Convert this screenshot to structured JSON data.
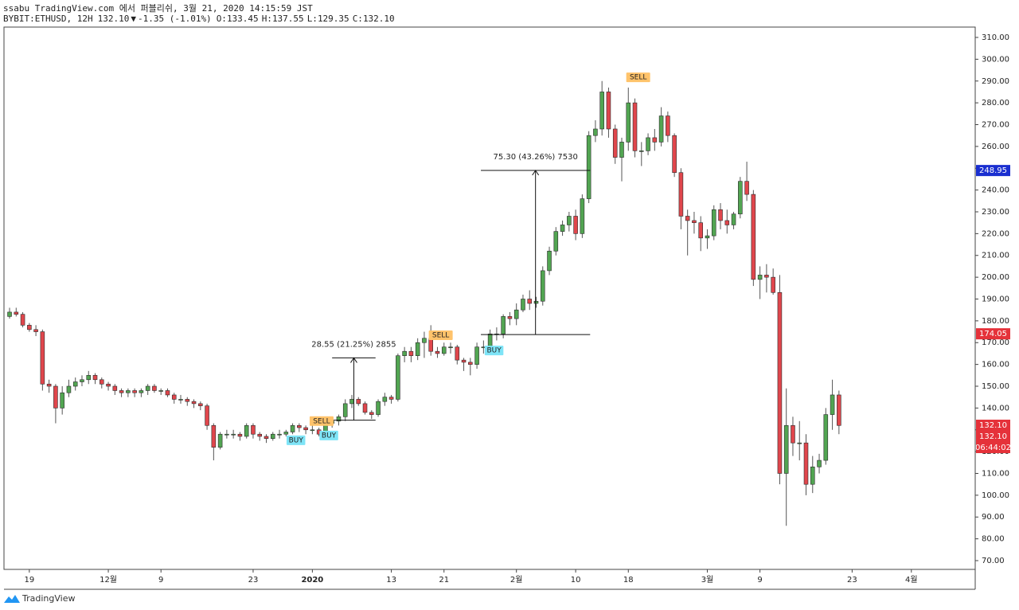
{
  "header": {
    "publisher": "ssabu TradingView.com 에서 퍼블리쉬, 3월 21, 2020 14:15:59 JST",
    "symbol": "BYBIT:ETHUSD, 12H",
    "last": "132.10",
    "direction": "▼",
    "change": "-1.35 (-1.01%)",
    "ohlc": [
      {
        "label": "O:",
        "value": "133.45"
      },
      {
        "label": "H:",
        "value": "137.55"
      },
      {
        "label": "L:",
        "value": "129.35"
      },
      {
        "label": "C:",
        "value": "132.10"
      }
    ]
  },
  "logo": "TradingView",
  "chart_data": {
    "type": "candlestick",
    "up_color": "#52a552",
    "down_color": "#e0464c",
    "wick_color": "#555555",
    "xlim": [
      -0.85,
      146.7
    ],
    "ylim": [
      65.98,
      314.75
    ],
    "grid": false,
    "xticks": [
      {
        "value": 3,
        "label": "19"
      },
      {
        "value": 15,
        "label": "12월"
      },
      {
        "value": 23,
        "label": "9"
      },
      {
        "value": 37,
        "label": "23"
      },
      {
        "value": 46,
        "label": "2020"
      },
      {
        "value": 58,
        "label": "13"
      },
      {
        "value": 66,
        "label": "21"
      },
      {
        "value": 77,
        "label": "2월"
      },
      {
        "value": 86,
        "label": "10"
      },
      {
        "value": 94,
        "label": "18"
      },
      {
        "value": 106,
        "label": "3월"
      },
      {
        "value": 114,
        "label": "9"
      },
      {
        "value": 128,
        "label": "23"
      },
      {
        "value": 137,
        "label": "4월"
      }
    ],
    "yticks": [
      {
        "value": 70,
        "label": "70.00"
      },
      {
        "value": 80,
        "label": "80.00"
      },
      {
        "value": 90,
        "label": "90.00"
      },
      {
        "value": 100,
        "label": "100.00"
      },
      {
        "value": 110,
        "label": "110.00"
      },
      {
        "value": 120,
        "label": "120.00"
      },
      {
        "value": 130,
        "label": "130.00"
      },
      {
        "value": 140,
        "label": "140.00"
      },
      {
        "value": 150,
        "label": "150.00"
      },
      {
        "value": 160,
        "label": "160.00"
      },
      {
        "value": 170,
        "label": "170.00"
      },
      {
        "value": 180,
        "label": "180.00"
      },
      {
        "value": 190,
        "label": "190.00"
      },
      {
        "value": 200,
        "label": "200.00"
      },
      {
        "value": 210,
        "label": "210.00"
      },
      {
        "value": 220,
        "label": "220.00"
      },
      {
        "value": 230,
        "label": "230.00"
      },
      {
        "value": 240,
        "label": "240.00"
      },
      {
        "value": 250,
        "label": "250.00"
      },
      {
        "value": 260,
        "label": "260.00"
      },
      {
        "value": 270,
        "label": "270.00"
      },
      {
        "value": 280,
        "label": "280.00"
      },
      {
        "value": 290,
        "label": "290.00"
      },
      {
        "value": 300,
        "label": "300.00"
      },
      {
        "value": 310,
        "label": "310.00"
      }
    ],
    "open": [
      182,
      184,
      183,
      178,
      176,
      175,
      151,
      150,
      140,
      147,
      150,
      152,
      153,
      155,
      153,
      151,
      150,
      148,
      147,
      148,
      147,
      148,
      150,
      148,
      148,
      146,
      144,
      144,
      143,
      142,
      141,
      132,
      122,
      128,
      128,
      128,
      127,
      132,
      128,
      127,
      126,
      128,
      128,
      129,
      132,
      131,
      130,
      130,
      128,
      133,
      134,
      136,
      142,
      144,
      142,
      138,
      137,
      143,
      145,
      144,
      164,
      166,
      164,
      170,
      172,
      166,
      165,
      168,
      168,
      162,
      161,
      160,
      168,
      168,
      174,
      174,
      182,
      181,
      185,
      190,
      188,
      189,
      203,
      212,
      221,
      224,
      228,
      220,
      236,
      265,
      268,
      285,
      268,
      255,
      262,
      280,
      258,
      258,
      264,
      262,
      274,
      265,
      248,
      228,
      226,
      225,
      218,
      219,
      231,
      226,
      224,
      229,
      244,
      238,
      199,
      201,
      200,
      193,
      110,
      132,
      124,
      124,
      105,
      113,
      116,
      137,
      146
    ],
    "high": [
      186,
      186,
      184,
      179,
      178,
      176,
      153,
      151,
      150,
      153,
      154,
      155,
      157,
      156,
      154,
      152,
      151,
      149,
      149,
      149,
      149,
      151,
      151,
      149,
      149,
      147,
      146,
      145,
      144,
      143,
      142,
      133,
      129,
      130,
      130,
      129,
      133,
      133,
      129,
      128,
      129,
      130,
      130,
      133,
      133,
      132,
      132,
      131,
      134,
      136,
      137,
      144,
      146,
      145,
      143,
      139,
      144,
      147,
      146,
      165,
      168,
      168,
      172,
      175,
      178,
      168,
      170,
      170,
      169,
      163,
      163,
      170,
      171,
      176,
      177,
      183,
      184,
      188,
      192,
      194,
      191,
      205,
      214,
      223,
      226,
      230,
      231,
      238,
      267,
      272,
      290,
      287,
      270,
      264,
      287,
      282,
      262,
      266,
      268,
      278,
      276,
      266,
      250,
      231,
      230,
      228,
      222,
      233,
      234,
      231,
      230,
      246,
      253,
      240,
      205,
      206,
      204,
      201,
      149,
      136,
      134,
      128,
      118,
      119,
      140,
      153,
      148
    ],
    "low": [
      181,
      182,
      177,
      175,
      173,
      148,
      147,
      133,
      137,
      145,
      148,
      150,
      151,
      151,
      149,
      148,
      146,
      145,
      145,
      145,
      145,
      146,
      147,
      146,
      145,
      142,
      142,
      141,
      140,
      139,
      130,
      116,
      121,
      126,
      126,
      125,
      126,
      126,
      125,
      124,
      125,
      126,
      127,
      128,
      129,
      128,
      128,
      127,
      127,
      131,
      132,
      134,
      140,
      141,
      137,
      135,
      136,
      141,
      142,
      143,
      161,
      161,
      162,
      163,
      164,
      163,
      164,
      165,
      160,
      157,
      155,
      158,
      165,
      167,
      171,
      172,
      178,
      178,
      184,
      185,
      186,
      187,
      201,
      210,
      219,
      221,
      217,
      218,
      234,
      262,
      265,
      264,
      252,
      244,
      258,
      255,
      251,
      256,
      258,
      260,
      262,
      246,
      222,
      210,
      220,
      212,
      213,
      217,
      222,
      220,
      222,
      227,
      235,
      196,
      190,
      193,
      192,
      105,
      86,
      118,
      116,
      100,
      101,
      110,
      114,
      130,
      128
    ],
    "close": [
      184,
      183,
      178,
      176,
      175,
      151,
      150,
      140,
      147,
      150,
      152,
      153,
      155,
      153,
      151,
      150,
      148,
      147,
      148,
      147,
      148,
      150,
      148,
      148,
      146,
      144,
      144,
      143,
      142,
      141,
      132,
      122,
      128,
      128,
      128,
      127,
      132,
      128,
      127,
      126,
      128,
      128,
      129,
      132,
      131,
      130,
      130,
      128,
      133,
      134,
      136,
      142,
      144,
      142,
      138,
      137,
      143,
      145,
      144,
      164,
      166,
      164,
      170,
      172,
      166,
      165,
      168,
      168,
      162,
      161,
      160,
      168,
      168,
      174,
      174,
      182,
      181,
      185,
      190,
      188,
      189,
      203,
      212,
      221,
      224,
      228,
      220,
      236,
      265,
      268,
      285,
      268,
      255,
      262,
      280,
      258,
      258,
      264,
      262,
      274,
      265,
      248,
      228,
      226,
      225,
      218,
      219,
      231,
      226,
      224,
      229,
      244,
      238,
      199,
      201,
      200,
      193,
      110,
      132,
      124,
      124,
      105,
      113,
      116,
      137,
      146,
      132
    ],
    "measures": [
      {
        "label": "28.55 (21.25%) 2855",
        "low": 134.45,
        "high": 163.0,
        "start": 49,
        "end": 55.6
      },
      {
        "label": "75.30 (43.26%) 7530",
        "low": 173.7,
        "high": 249.0,
        "start": 71.6,
        "end": 88.2
      }
    ],
    "signals": [
      {
        "text": "BUY",
        "index": 43.5,
        "price": 125.2,
        "color": "#7ee4f7",
        "text_color": "#1e6fd6"
      },
      {
        "text": "SELL",
        "index": 47.4,
        "price": 134.0,
        "color": "#ffc36b",
        "text_color": "#e07b00"
      },
      {
        "text": "BUY",
        "index": 48.5,
        "price": 127.4,
        "color": "#7ee4f7",
        "text_color": "#1e6fd6"
      },
      {
        "text": "SELL",
        "index": 65.5,
        "price": 173.4,
        "color": "#ffc36b",
        "text_color": "#e07b00"
      },
      {
        "text": "BUY",
        "index": 73.6,
        "price": 166.4,
        "color": "#7ee4f7",
        "text_color": "#1e6fd6"
      },
      {
        "text": "SELL",
        "index": 95.5,
        "price": 291.7,
        "color": "#ffc36b",
        "text_color": "#e07b00"
      }
    ],
    "price_labels": [
      {
        "value": 248.95,
        "label": "248.95",
        "color": "#1a2fd0"
      },
      {
        "value": 174.05,
        "label": "174.05",
        "color": "#e5323a"
      },
      {
        "value": 132.1,
        "label": "132.10",
        "color": "#e5323a"
      },
      {
        "value": 132.1,
        "label": "132.10",
        "color": "#e5323a"
      }
    ],
    "countdown": "06:44:02"
  }
}
